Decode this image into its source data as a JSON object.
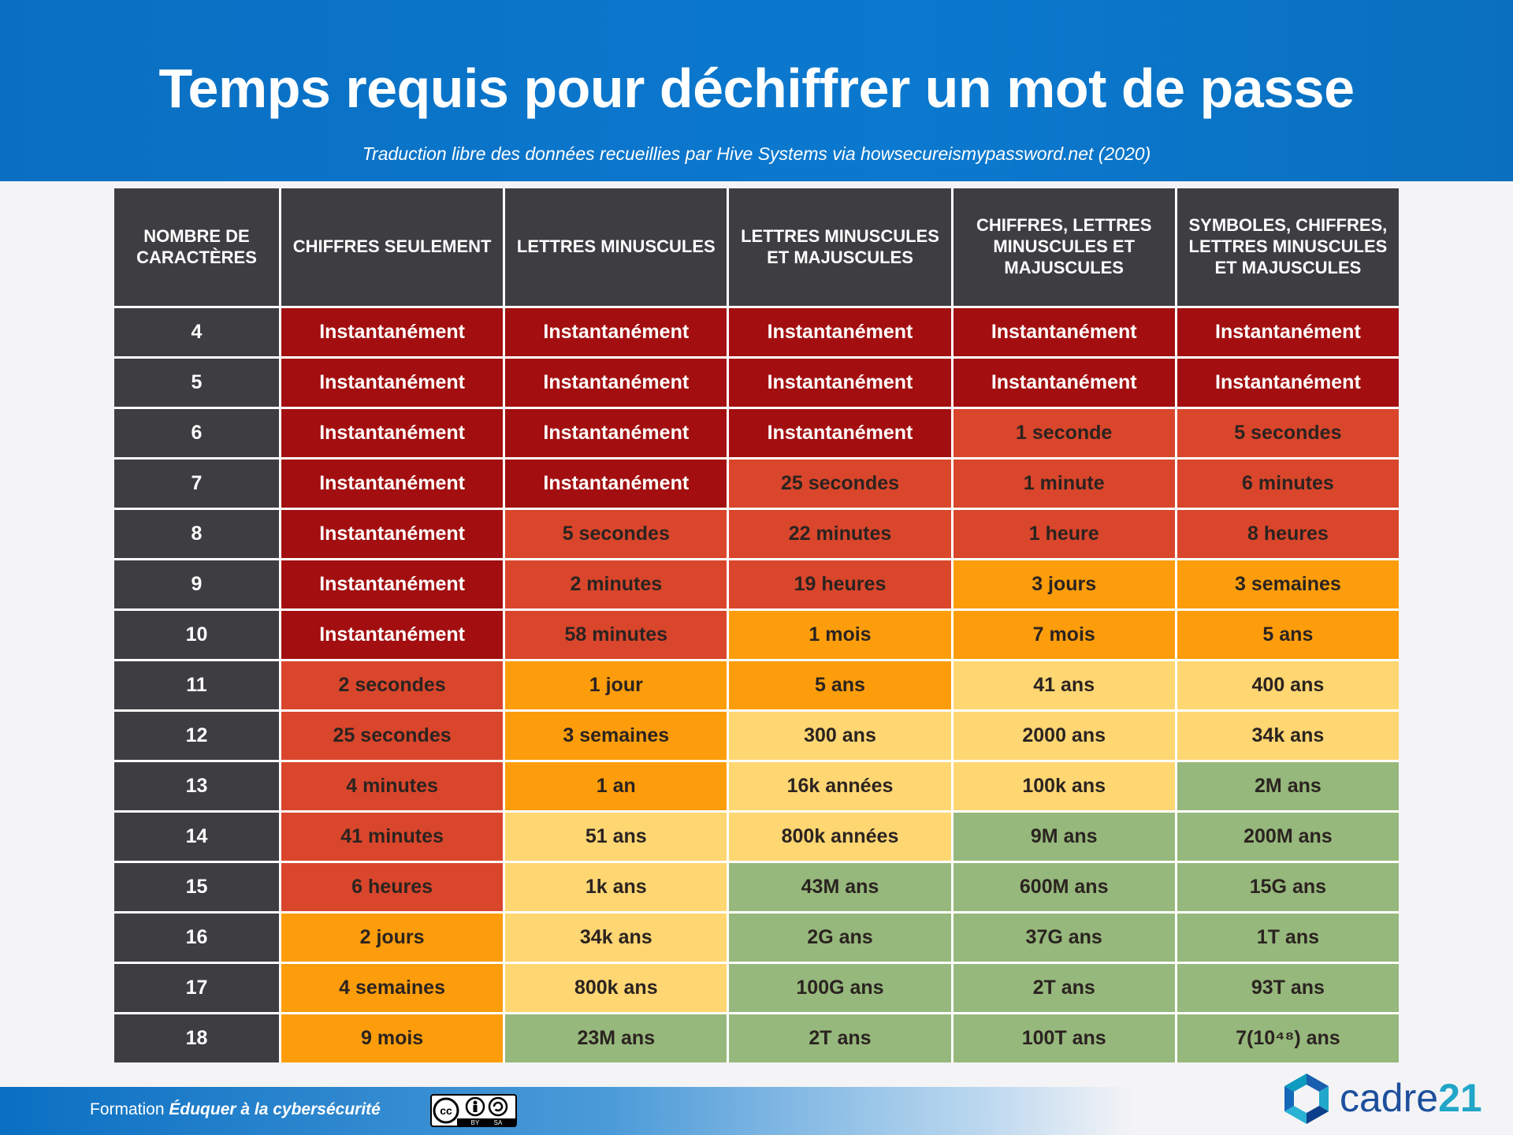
{
  "header": {
    "title": "Temps requis pour déchiffrer un mot de passe",
    "subtitle": "Traduction libre des données recueillies par Hive Systems via howsecureismypassword.net (2020)"
  },
  "table": {
    "columns": [
      "NOMBRE DE CARACTÈRES",
      "CHIFFRES SEULEMENT",
      "LETTRES MINUSCULES",
      "LETTRES MINUSCULES ET MAJUSCULES",
      "CHIFFRES, LETTRES MINUSCULES ET MAJUSCULES",
      "SYMBOLES, CHIFFRES, LETTRES MINUSCULES ET MAJUSCULES"
    ],
    "rows": [
      {
        "label": "4",
        "cells": [
          {
            "text": "Instantanément",
            "color": "#a30f10"
          },
          {
            "text": "Instantanément",
            "color": "#a30f10"
          },
          {
            "text": "Instantanément",
            "color": "#a30f10"
          },
          {
            "text": "Instantanément",
            "color": "#a30f10"
          },
          {
            "text": "Instantanément",
            "color": "#a30f10"
          }
        ]
      },
      {
        "label": "5",
        "cells": [
          {
            "text": "Instantanément",
            "color": "#a30f10"
          },
          {
            "text": "Instantanément",
            "color": "#a30f10"
          },
          {
            "text": "Instantanément",
            "color": "#a30f10"
          },
          {
            "text": "Instantanément",
            "color": "#a30f10"
          },
          {
            "text": "Instantanément",
            "color": "#a30f10"
          }
        ]
      },
      {
        "label": "6",
        "cells": [
          {
            "text": "Instantanément",
            "color": "#a30f10"
          },
          {
            "text": "Instantanément",
            "color": "#a30f10"
          },
          {
            "text": "Instantanément",
            "color": "#a30f10"
          },
          {
            "text": "1 seconde",
            "color": "#d9462b"
          },
          {
            "text": "5 secondes",
            "color": "#d9462b"
          }
        ]
      },
      {
        "label": "7",
        "cells": [
          {
            "text": "Instantanément",
            "color": "#a30f10"
          },
          {
            "text": "Instantanément",
            "color": "#a30f10"
          },
          {
            "text": "25 secondes",
            "color": "#d9462b"
          },
          {
            "text": "1 minute",
            "color": "#d9462b"
          },
          {
            "text": "6 minutes",
            "color": "#d9462b"
          }
        ]
      },
      {
        "label": "8",
        "cells": [
          {
            "text": "Instantanément",
            "color": "#a30f10"
          },
          {
            "text": "5 secondes",
            "color": "#d9462b"
          },
          {
            "text": "22 minutes",
            "color": "#d9462b"
          },
          {
            "text": "1 heure",
            "color": "#d9462b"
          },
          {
            "text": "8 heures",
            "color": "#d9462b"
          }
        ]
      },
      {
        "label": "9",
        "cells": [
          {
            "text": "Instantanément",
            "color": "#a30f10"
          },
          {
            "text": "2 minutes",
            "color": "#d9462b"
          },
          {
            "text": "19 heures",
            "color": "#d9462b"
          },
          {
            "text": "3 jours",
            "color": "#fd9d0b"
          },
          {
            "text": "3 semaines",
            "color": "#fd9d0b"
          }
        ]
      },
      {
        "label": "10",
        "cells": [
          {
            "text": "Instantanément",
            "color": "#a30f10"
          },
          {
            "text": "58 minutes",
            "color": "#d9462b"
          },
          {
            "text": "1 mois",
            "color": "#fd9d0b"
          },
          {
            "text": "7 mois",
            "color": "#fd9d0b"
          },
          {
            "text": "5 ans",
            "color": "#fd9d0b"
          }
        ]
      },
      {
        "label": "11",
        "cells": [
          {
            "text": "2 secondes",
            "color": "#d9462b"
          },
          {
            "text": "1 jour",
            "color": "#fd9d0b"
          },
          {
            "text": "5 ans",
            "color": "#fd9d0b"
          },
          {
            "text": "41 ans",
            "color": "#fed672"
          },
          {
            "text": "400 ans",
            "color": "#fed672"
          }
        ]
      },
      {
        "label": "12",
        "cells": [
          {
            "text": "25 secondes",
            "color": "#d9462b"
          },
          {
            "text": "3 semaines",
            "color": "#fd9d0b"
          },
          {
            "text": "300 ans",
            "color": "#fed672"
          },
          {
            "text": "2000 ans",
            "color": "#fed672"
          },
          {
            "text": "34k ans",
            "color": "#fed672"
          }
        ]
      },
      {
        "label": "13",
        "cells": [
          {
            "text": "4 minutes",
            "color": "#d9462b"
          },
          {
            "text": "1 an",
            "color": "#fd9d0b"
          },
          {
            "text": "16k années",
            "color": "#fed672"
          },
          {
            "text": "100k ans",
            "color": "#fed672"
          },
          {
            "text": "2M ans",
            "color": "#96b87c"
          }
        ]
      },
      {
        "label": "14",
        "cells": [
          {
            "text": "41 minutes",
            "color": "#d9462b"
          },
          {
            "text": "51 ans",
            "color": "#fed672"
          },
          {
            "text": "800k années",
            "color": "#fed672"
          },
          {
            "text": "9M ans",
            "color": "#96b87c"
          },
          {
            "text": "200M ans",
            "color": "#96b87c"
          }
        ]
      },
      {
        "label": "15",
        "cells": [
          {
            "text": "6 heures",
            "color": "#d9462b"
          },
          {
            "text": "1k ans",
            "color": "#fed672"
          },
          {
            "text": "43M ans",
            "color": "#96b87c"
          },
          {
            "text": "600M ans",
            "color": "#96b87c"
          },
          {
            "text": "15G ans",
            "color": "#96b87c"
          }
        ]
      },
      {
        "label": "16",
        "cells": [
          {
            "text": "2 jours",
            "color": "#fd9d0b"
          },
          {
            "text": "34k ans",
            "color": "#fed672"
          },
          {
            "text": "2G ans",
            "color": "#96b87c"
          },
          {
            "text": "37G ans",
            "color": "#96b87c"
          },
          {
            "text": "1T ans",
            "color": "#96b87c"
          }
        ]
      },
      {
        "label": "17",
        "cells": [
          {
            "text": "4 semaines",
            "color": "#fd9d0b"
          },
          {
            "text": "800k ans",
            "color": "#fed672"
          },
          {
            "text": "100G ans",
            "color": "#96b87c"
          },
          {
            "text": "2T ans",
            "color": "#96b87c"
          },
          {
            "text": "93T ans",
            "color": "#96b87c"
          }
        ]
      },
      {
        "label": "18",
        "cells": [
          {
            "text": "9 mois",
            "color": "#fd9d0b"
          },
          {
            "text": "23M ans",
            "color": "#96b87c"
          },
          {
            "text": "2T ans",
            "color": "#96b87c"
          },
          {
            "text": "100T ans",
            "color": "#96b87c"
          },
          {
            "text": "7(10⁴⁸) ans",
            "color": "#96b87c"
          }
        ]
      }
    ]
  },
  "footer": {
    "prefix": "Formation",
    "course": "Éduquer à la cybersécurité",
    "license": [
      "cc",
      "BY",
      "SA"
    ],
    "logo": [
      "cadre",
      "21"
    ]
  }
}
